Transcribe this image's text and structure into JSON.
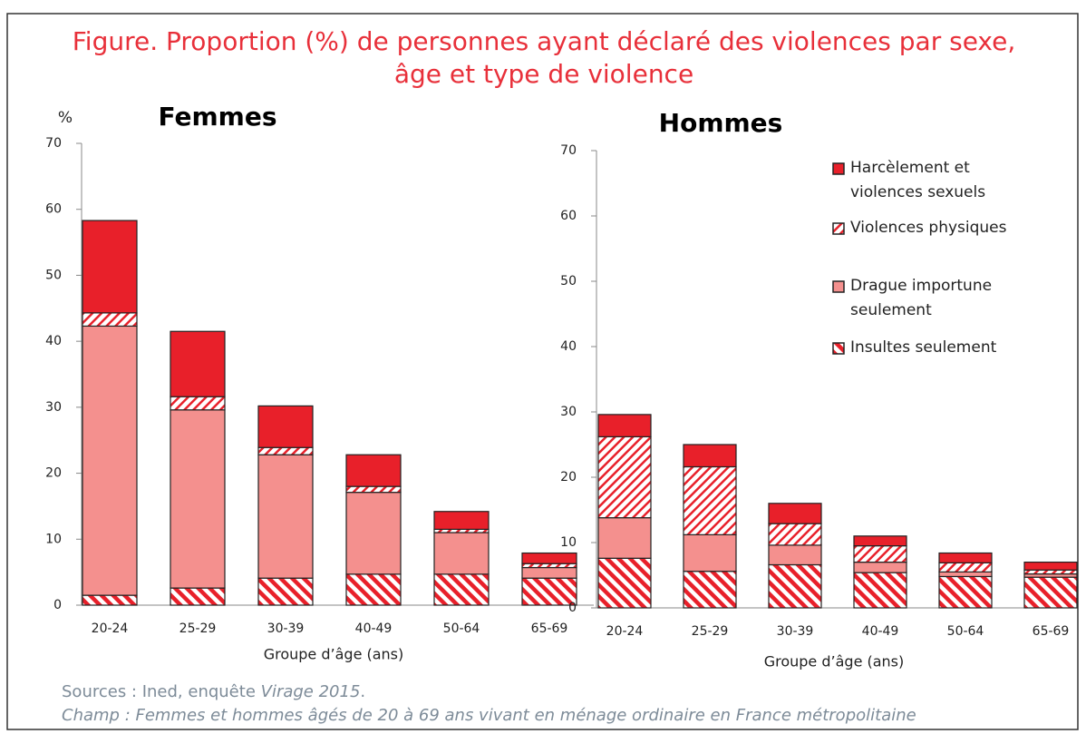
{
  "header": {
    "title": [
      "Figure. Proportion (%) de personnes ayant déclaré des violences par sexe,",
      "âge et type de violence"
    ]
  },
  "chart_data": [
    {
      "type": "bar",
      "stacked": true,
      "title": "Femmes",
      "ylabel": "%",
      "xlabel": "Groupe d’âge (ans)",
      "categories": [
        "20-24",
        "25-29",
        "30-39",
        "40-49",
        "50-64",
        "65-69"
      ],
      "ylim": [
        0,
        70
      ],
      "yticks": [
        0,
        10,
        20,
        30,
        40,
        50,
        60,
        70
      ],
      "series": [
        {
          "name": "Insultes seulement",
          "color": "#e8202a",
          "pattern": "stripes",
          "values": [
            1.5,
            2.6,
            4.1,
            4.7,
            4.7,
            4.1
          ]
        },
        {
          "name": "Drague importune seulement",
          "color": "#f4908e",
          "pattern": "solid",
          "values": [
            40.8,
            27.0,
            18.7,
            12.4,
            6.3,
            1.6
          ]
        },
        {
          "name": "Violences physiques",
          "color": "#e8202a",
          "pattern": "hatch",
          "values": [
            2.0,
            2.0,
            1.1,
            0.9,
            0.5,
            0.6
          ]
        },
        {
          "name": "Harcèlement et violences sexuels",
          "color": "#e8202a",
          "pattern": "solid",
          "values": [
            14.0,
            9.9,
            6.3,
            4.8,
            2.7,
            1.6
          ]
        }
      ]
    },
    {
      "type": "bar",
      "stacked": true,
      "title": "Hommes",
      "xlabel": "Groupe d’âge (ans)",
      "legend": "upper right",
      "categories": [
        "20-24",
        "25-29",
        "30-39",
        "40-49",
        "50-64",
        "65-69"
      ],
      "ylim": [
        0,
        70
      ],
      "yticks": [
        0,
        10,
        20,
        30,
        40,
        50,
        60,
        70
      ],
      "series": [
        {
          "name": "Insultes seulement",
          "color": "#e8202a",
          "pattern": "stripes",
          "values": [
            7.6,
            5.6,
            6.6,
            5.4,
            4.8,
            4.7
          ]
        },
        {
          "name": "Drague importune seulement",
          "color": "#f4908e",
          "pattern": "solid",
          "values": [
            6.2,
            5.6,
            3.0,
            1.6,
            0.7,
            0.5
          ]
        },
        {
          "name": "Violences physiques",
          "color": "#e8202a",
          "pattern": "hatch",
          "values": [
            12.4,
            10.4,
            3.3,
            2.5,
            1.4,
            0.6
          ]
        },
        {
          "name": "Harcèlement et violences sexuels",
          "color": "#e8202a",
          "pattern": "solid",
          "values": [
            3.4,
            3.4,
            3.1,
            1.5,
            1.5,
            1.2
          ]
        }
      ]
    }
  ],
  "footer": {
    "sources": [
      "Sources : Ined, enquête ",
      "Virage 2015",
      "."
    ],
    "champ": "Champ : Femmes et hommes âgés de 20 à 69 ans vivant en ménage ordinaire en France métropolitaine"
  }
}
